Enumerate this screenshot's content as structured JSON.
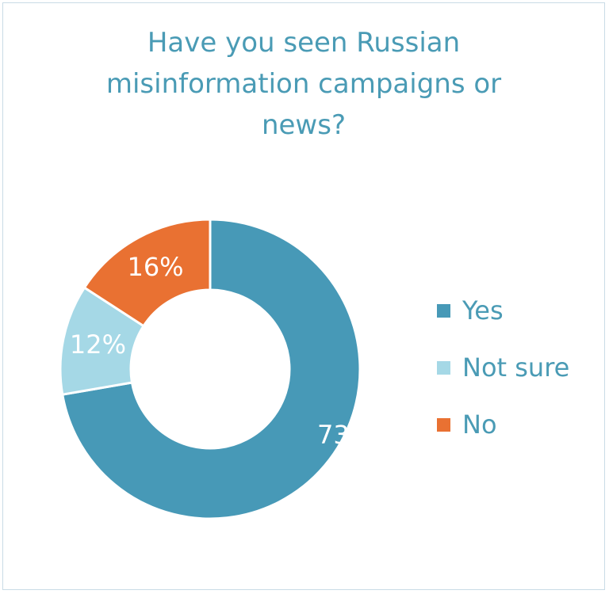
{
  "chart_data": {
    "type": "pie",
    "donut": true,
    "title_lines": [
      "Have you seen Russian",
      "misinformation campaigns or",
      "news?"
    ],
    "categories": [
      "Yes",
      "Not sure",
      "No"
    ],
    "values": [
      73,
      12,
      16
    ],
    "labels": [
      "73%",
      "12%",
      "16%"
    ],
    "colors": [
      "#4799b7",
      "#a5d8e6",
      "#e97132"
    ],
    "legend_position": "right"
  }
}
